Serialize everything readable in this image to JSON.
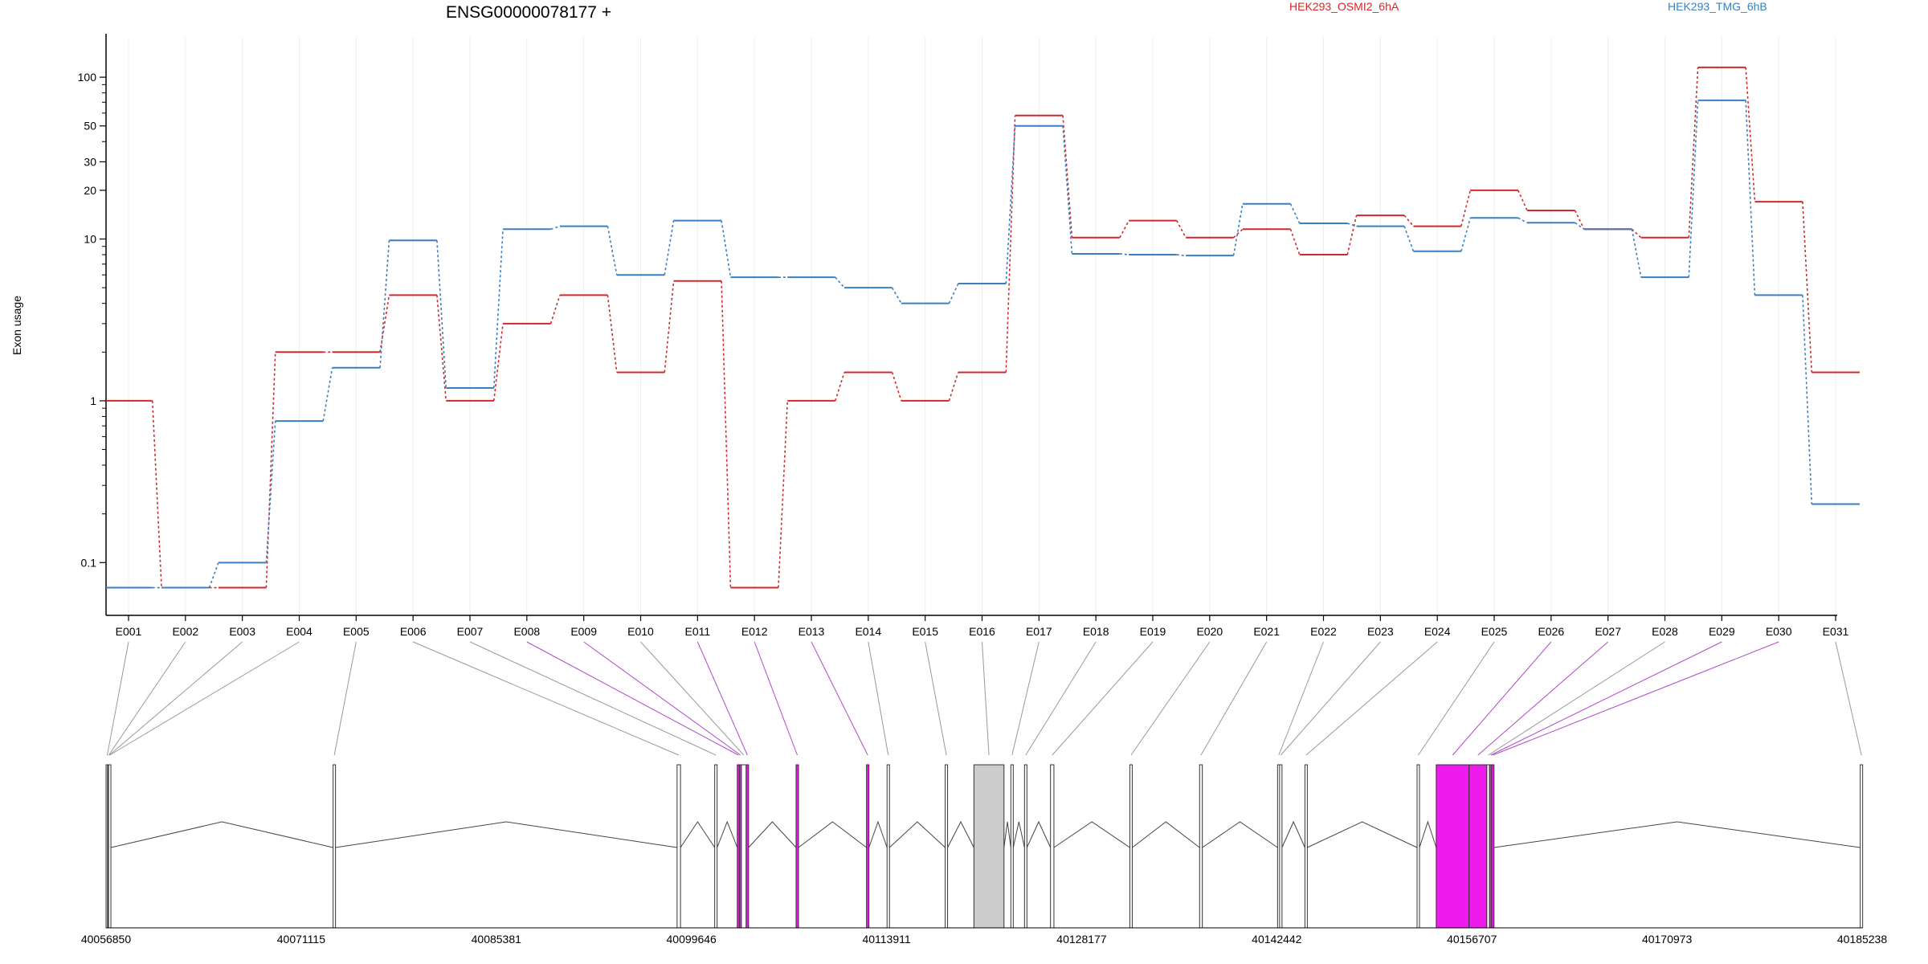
{
  "chart_data": {
    "type": "line",
    "title": "ENSG00000078177 +",
    "ylabel": "Exon usage",
    "xlabel": "",
    "y_scale": "log",
    "y_ticks": [
      0.1,
      1,
      10,
      20,
      30,
      50,
      100
    ],
    "y_tick_labels": [
      "0.1",
      "1",
      "10",
      "20",
      "30",
      "50",
      "100"
    ],
    "categories": [
      "E001",
      "E002",
      "E003",
      "E004",
      "E005",
      "E006",
      "E007",
      "E008",
      "E009",
      "E010",
      "E011",
      "E012",
      "E013",
      "E014",
      "E015",
      "E016",
      "E017",
      "E018",
      "E019",
      "E020",
      "E021",
      "E022",
      "E023",
      "E024",
      "E025",
      "E026",
      "E027",
      "E028",
      "E029",
      "E030",
      "E031"
    ],
    "series": [
      {
        "name": "HEK293_OSMI2_6hA",
        "color": "#d62728",
        "values": [
          1.0,
          0.07,
          0.07,
          2.0,
          2.0,
          4.5,
          1.0,
          3.0,
          4.5,
          1.5,
          5.5,
          0.07,
          1.0,
          1.5,
          1.0,
          1.5,
          58,
          10.2,
          13,
          10.2,
          11.5,
          8.0,
          14,
          12,
          20,
          15,
          11.5,
          10.2,
          115,
          17,
          1.5
        ]
      },
      {
        "name": "HEK293_TMG_6hB",
        "color": "#3a7fc1",
        "values": [
          0.07,
          0.07,
          0.1,
          0.75,
          1.6,
          9.8,
          1.2,
          11.5,
          12,
          6.0,
          13,
          5.8,
          5.8,
          5.0,
          4.0,
          5.3,
          50,
          8.1,
          8.0,
          7.9,
          16.5,
          12.5,
          12,
          8.4,
          13.5,
          12.6,
          11.5,
          5.8,
          72,
          4.5,
          0.23
        ]
      }
    ],
    "gene_axis": {
      "ticks": [
        40056850,
        40071115,
        40085381,
        40099646,
        40113911,
        40128177,
        40142442,
        40156707,
        40170973,
        40185238
      ],
      "tick_labels": [
        "40056850",
        "40071115",
        "40085381",
        "40099646",
        "40113911",
        "40128177",
        "40142442",
        "40156707",
        "40170973",
        "40185238"
      ],
      "start": 40056850,
      "end": 40185238
    },
    "exons": [
      {
        "id": "E001",
        "start": 40056850,
        "end": 40056960,
        "highlight": false
      },
      {
        "id": "E002",
        "start": 40056960,
        "end": 40057000,
        "highlight": false
      },
      {
        "id": "E003",
        "start": 40057000,
        "end": 40057030,
        "highlight": false
      },
      {
        "id": "E004",
        "start": 40057030,
        "end": 40057060,
        "highlight": false
      },
      {
        "id": "E005",
        "start": 40073450,
        "end": 40073530,
        "highlight": false
      },
      {
        "id": "E006",
        "start": 40098600,
        "end": 40098850,
        "highlight": false
      },
      {
        "id": "E007",
        "start": 40101350,
        "end": 40101450,
        "highlight": false
      },
      {
        "id": "E008",
        "start": 40103000,
        "end": 40103150,
        "highlight": true
      },
      {
        "id": "E009",
        "start": 40103150,
        "end": 40103300,
        "highlight": true
      },
      {
        "id": "E010",
        "start": 40103300,
        "end": 40103650,
        "highlight": false
      },
      {
        "id": "E011",
        "start": 40103650,
        "end": 40103800,
        "highlight": true
      },
      {
        "id": "E012",
        "start": 40107300,
        "end": 40107450,
        "highlight": true
      },
      {
        "id": "E013",
        "start": 40112450,
        "end": 40112600,
        "highlight": true
      },
      {
        "id": "E014",
        "start": 40113950,
        "end": 40114050,
        "highlight": false
      },
      {
        "id": "E015",
        "start": 40118200,
        "end": 40118300,
        "highlight": false
      },
      {
        "id": "E016",
        "start": 40120300,
        "end": 40122500,
        "highlight": false,
        "gray": true
      },
      {
        "id": "E017",
        "start": 40123000,
        "end": 40123150,
        "highlight": false
      },
      {
        "id": "E018",
        "start": 40124000,
        "end": 40124100,
        "highlight": false
      },
      {
        "id": "E019",
        "start": 40125900,
        "end": 40126150,
        "highlight": false
      },
      {
        "id": "E020",
        "start": 40131700,
        "end": 40131850,
        "highlight": false
      },
      {
        "id": "E021",
        "start": 40136800,
        "end": 40137000,
        "highlight": false
      },
      {
        "id": "E022",
        "start": 40142500,
        "end": 40142600,
        "highlight": false
      },
      {
        "id": "E023",
        "start": 40142650,
        "end": 40142750,
        "highlight": false
      },
      {
        "id": "E024",
        "start": 40144500,
        "end": 40144650,
        "highlight": false
      },
      {
        "id": "E025",
        "start": 40152700,
        "end": 40152850,
        "highlight": false
      },
      {
        "id": "E026",
        "start": 40154100,
        "end": 40156500,
        "highlight": true
      },
      {
        "id": "E027",
        "start": 40156500,
        "end": 40157800,
        "highlight": true
      },
      {
        "id": "E028",
        "start": 40157800,
        "end": 40158000,
        "highlight": false
      },
      {
        "id": "E029",
        "start": 40158000,
        "end": 40158150,
        "highlight": true
      },
      {
        "id": "E030",
        "start": 40158150,
        "end": 40158300,
        "highlight": true
      },
      {
        "id": "E031",
        "start": 40185100,
        "end": 40185238,
        "highlight": false
      }
    ],
    "highlight_color": "#ee1aee",
    "legend_placement": "top",
    "grid": true
  }
}
